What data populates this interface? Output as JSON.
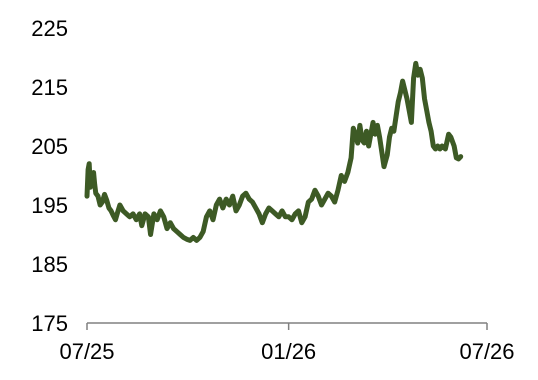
{
  "chart_data": {
    "type": "line",
    "title": "",
    "xlabel": "",
    "ylabel": "",
    "ylim": [
      175,
      225
    ],
    "y_ticks": [
      175,
      185,
      195,
      205,
      215,
      225
    ],
    "x_range": [
      "2025-07-01",
      "2026-07-01"
    ],
    "x_ticks": [
      {
        "date": "2025-07-01",
        "label": "07/25"
      },
      {
        "date": "2026-01-01",
        "label": "01/26"
      },
      {
        "date": "2026-07-01",
        "label": "07/26"
      }
    ],
    "grid": false,
    "legend": "none",
    "series": [
      {
        "color": "#3d5a25",
        "points": [
          [
            "2025-07-01",
            196.5
          ],
          [
            "2025-07-02",
            201.0
          ],
          [
            "2025-07-03",
            202.0
          ],
          [
            "2025-07-04",
            198.0
          ],
          [
            "2025-07-06",
            199.0
          ],
          [
            "2025-07-07",
            200.5
          ],
          [
            "2025-07-08",
            198.5
          ],
          [
            "2025-07-09",
            197.0
          ],
          [
            "2025-07-11",
            196.5
          ],
          [
            "2025-07-13",
            195.0
          ],
          [
            "2025-07-15",
            195.5
          ],
          [
            "2025-07-17",
            196.8
          ],
          [
            "2025-07-19",
            195.8
          ],
          [
            "2025-07-21",
            194.5
          ],
          [
            "2025-07-23",
            194.0
          ],
          [
            "2025-07-25",
            193.2
          ],
          [
            "2025-07-27",
            192.5
          ],
          [
            "2025-07-29",
            193.8
          ],
          [
            "2025-07-31",
            195.0
          ],
          [
            "2025-08-03",
            194.0
          ],
          [
            "2025-08-06",
            193.5
          ],
          [
            "2025-08-09",
            193.0
          ],
          [
            "2025-08-12",
            193.5
          ],
          [
            "2025-08-15",
            192.5
          ],
          [
            "2025-08-18",
            193.5
          ],
          [
            "2025-08-20",
            191.5
          ],
          [
            "2025-08-23",
            193.5
          ],
          [
            "2025-08-26",
            193.0
          ],
          [
            "2025-08-28",
            190.0
          ],
          [
            "2025-08-31",
            193.5
          ],
          [
            "2025-09-03",
            192.5
          ],
          [
            "2025-09-06",
            194.0
          ],
          [
            "2025-09-09",
            193.0
          ],
          [
            "2025-09-12",
            191.0
          ],
          [
            "2025-09-15",
            192.0
          ],
          [
            "2025-09-18",
            191.0
          ],
          [
            "2025-09-21",
            190.5
          ],
          [
            "2025-09-24",
            190.0
          ],
          [
            "2025-09-27",
            189.5
          ],
          [
            "2025-09-30",
            189.2
          ],
          [
            "2025-10-03",
            189.0
          ],
          [
            "2025-10-06",
            189.5
          ],
          [
            "2025-10-09",
            189.0
          ],
          [
            "2025-10-12",
            189.5
          ],
          [
            "2025-10-15",
            190.5
          ],
          [
            "2025-10-18",
            193.0
          ],
          [
            "2025-10-21",
            194.0
          ],
          [
            "2025-10-24",
            192.5
          ],
          [
            "2025-10-27",
            195.0
          ],
          [
            "2025-10-30",
            196.0
          ],
          [
            "2025-11-02",
            194.5
          ],
          [
            "2025-11-05",
            196.0
          ],
          [
            "2025-11-08",
            195.0
          ],
          [
            "2025-11-11",
            196.5
          ],
          [
            "2025-11-14",
            194.0
          ],
          [
            "2025-11-17",
            195.0
          ],
          [
            "2025-11-20",
            196.5
          ],
          [
            "2025-11-23",
            197.0
          ],
          [
            "2025-11-26",
            196.0
          ],
          [
            "2025-11-29",
            195.5
          ],
          [
            "2025-12-02",
            194.5
          ],
          [
            "2025-12-05",
            193.5
          ],
          [
            "2025-12-08",
            192.0
          ],
          [
            "2025-12-11",
            193.5
          ],
          [
            "2025-12-14",
            194.5
          ],
          [
            "2025-12-17",
            194.0
          ],
          [
            "2025-12-20",
            193.5
          ],
          [
            "2025-12-23",
            193.0
          ],
          [
            "2025-12-26",
            194.0
          ],
          [
            "2025-12-29",
            193.0
          ],
          [
            "2026-01-01",
            193.0
          ],
          [
            "2026-01-04",
            192.5
          ],
          [
            "2026-01-07",
            193.5
          ],
          [
            "2026-01-10",
            194.0
          ],
          [
            "2026-01-13",
            192.0
          ],
          [
            "2026-01-16",
            193.0
          ],
          [
            "2026-01-19",
            195.5
          ],
          [
            "2026-01-22",
            196.0
          ],
          [
            "2026-01-25",
            197.5
          ],
          [
            "2026-01-28",
            196.5
          ],
          [
            "2026-01-31",
            195.0
          ],
          [
            "2026-02-03",
            196.0
          ],
          [
            "2026-02-06",
            197.0
          ],
          [
            "2026-02-09",
            196.5
          ],
          [
            "2026-02-12",
            195.5
          ],
          [
            "2026-02-15",
            197.5
          ],
          [
            "2026-02-18",
            200.0
          ],
          [
            "2026-02-21",
            199.0
          ],
          [
            "2026-02-24",
            200.5
          ],
          [
            "2026-02-27",
            203.0
          ],
          [
            "2026-03-01",
            208.0
          ],
          [
            "2026-03-03",
            207.0
          ],
          [
            "2026-03-05",
            205.5
          ],
          [
            "2026-03-07",
            208.5
          ],
          [
            "2026-03-09",
            206.0
          ],
          [
            "2026-03-11",
            205.5
          ],
          [
            "2026-03-13",
            207.5
          ],
          [
            "2026-03-15",
            205.0
          ],
          [
            "2026-03-17",
            207.0
          ],
          [
            "2026-03-19",
            209.0
          ],
          [
            "2026-03-21",
            207.0
          ],
          [
            "2026-03-23",
            208.5
          ],
          [
            "2026-03-25",
            206.5
          ],
          [
            "2026-03-27",
            204.0
          ],
          [
            "2026-03-29",
            201.5
          ],
          [
            "2026-04-01",
            203.5
          ],
          [
            "2026-04-03",
            206.5
          ],
          [
            "2026-04-05",
            208.0
          ],
          [
            "2026-04-07",
            207.5
          ],
          [
            "2026-04-09",
            210.0
          ],
          [
            "2026-04-11",
            212.5
          ],
          [
            "2026-04-13",
            214.0
          ],
          [
            "2026-04-15",
            216.0
          ],
          [
            "2026-04-17",
            214.5
          ],
          [
            "2026-04-19",
            213.0
          ],
          [
            "2026-04-21",
            211.0
          ],
          [
            "2026-04-23",
            209.0
          ],
          [
            "2026-04-25",
            216.5
          ],
          [
            "2026-04-27",
            219.0
          ],
          [
            "2026-04-29",
            217.0
          ],
          [
            "2026-05-01",
            218.0
          ],
          [
            "2026-05-03",
            216.5
          ],
          [
            "2026-05-05",
            213.0
          ],
          [
            "2026-05-07",
            211.0
          ],
          [
            "2026-05-09",
            209.0
          ],
          [
            "2026-05-11",
            207.5
          ],
          [
            "2026-05-13",
            205.0
          ],
          [
            "2026-05-15",
            204.5
          ],
          [
            "2026-05-17",
            205.0
          ],
          [
            "2026-05-19",
            204.5
          ],
          [
            "2026-05-21",
            205.0
          ],
          [
            "2026-05-24",
            204.5
          ],
          [
            "2026-05-27",
            207.0
          ],
          [
            "2026-05-29",
            206.5
          ],
          [
            "2026-06-01",
            205.0
          ],
          [
            "2026-06-03",
            203.0
          ],
          [
            "2026-06-05",
            202.8
          ],
          [
            "2026-06-07",
            203.2
          ]
        ]
      }
    ]
  }
}
